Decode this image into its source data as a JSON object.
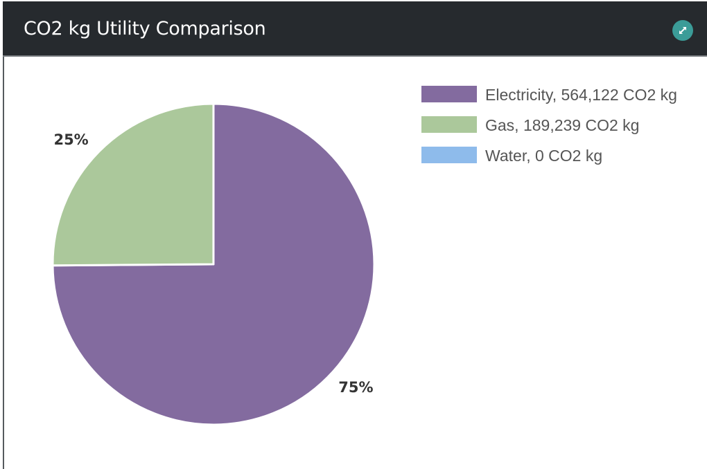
{
  "header": {
    "title": "CO2 kg Utility Comparison",
    "expand_icon": "expand-arrows-icon"
  },
  "colors": {
    "header_bg": "#262a2e",
    "expand_button": "#3b9c98"
  },
  "chart_data": {
    "type": "pie",
    "title": "CO2 kg Utility Comparison",
    "slices": [
      {
        "label": "Electricity, 564,122 CO2 kg",
        "category": "Electricity",
        "value": 564122,
        "percent_label": "75%",
        "color": "#836b9f"
      },
      {
        "label": "Gas, 189,239 CO2 kg",
        "category": "Gas",
        "value": 189239,
        "percent_label": "25%",
        "color": "#abc89b"
      },
      {
        "label": "Water, 0 CO2 kg",
        "category": "Water",
        "value": 0,
        "percent_label": "",
        "color": "#8ebbeb"
      }
    ],
    "legend_position": "top-right"
  }
}
